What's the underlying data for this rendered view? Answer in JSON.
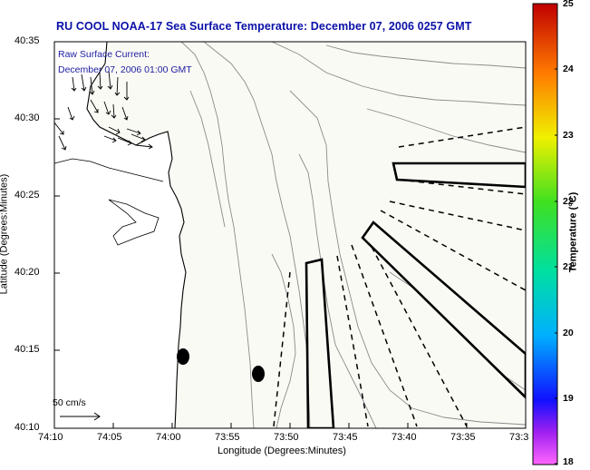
{
  "title": "RU COOL  NOAA-17  Sea Surface Temperature:  December 07, 2006 0257 GMT",
  "current_label_line1": "Raw Surface Current:",
  "current_label_line2": "December 07, 2006 01:00 GMT",
  "scale_label": "50 cm/s",
  "xlabel": "Longitude (Degrees:Minutes)",
  "ylabel": "Latitude (Degrees:Minutes)",
  "colorbar_label": "Temperature (°C)",
  "x_ticks": [
    "74:10",
    "74:05",
    "74:00",
    "73:55",
    "73:50",
    "73:45",
    "73:40",
    "73:35",
    "73:3"
  ],
  "y_ticks": [
    "40:35",
    "40:30",
    "40:25",
    "40:20",
    "40:15",
    "40:10"
  ],
  "colorbar_ticks": [
    "25",
    "24",
    "23",
    "22",
    "21",
    "20",
    "19",
    "18"
  ],
  "colors": {
    "title": "#0a10a8",
    "contour": "#8a8a8a",
    "land_fill": "#ffffff",
    "plot_bg": "#fafaf5"
  },
  "chart_data": {
    "type": "map",
    "xlim": [
      "74:10",
      "73:30"
    ],
    "ylim": [
      "40:10",
      "40:35"
    ],
    "colorbar_range": [
      18,
      25
    ],
    "colorbar_units": "°C"
  }
}
